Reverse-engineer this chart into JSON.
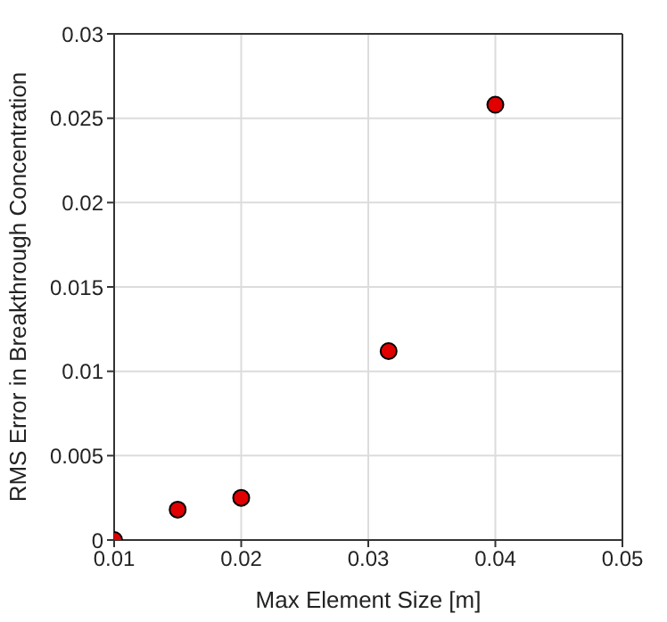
{
  "chart_data": {
    "type": "scatter",
    "xlabel": "Max Element Size [m]",
    "ylabel": "RMS Error in Breakthrough Concentration",
    "x": [
      0.01,
      0.015,
      0.02,
      0.0316,
      0.04
    ],
    "series": [
      {
        "color": "#e00000",
        "values": [
          0,
          0.0018,
          0.0025,
          0.0112,
          0.0258
        ]
      }
    ],
    "xlim": [
      0.01,
      0.05
    ],
    "xticks": [
      0.01,
      0.02,
      0.03,
      0.04,
      0.05
    ],
    "ylim": [
      0,
      0.03
    ],
    "yticks": [
      0,
      0.005,
      0.01,
      0.015,
      0.02,
      0.025,
      0.03
    ],
    "grid": true,
    "marker": "circle"
  }
}
